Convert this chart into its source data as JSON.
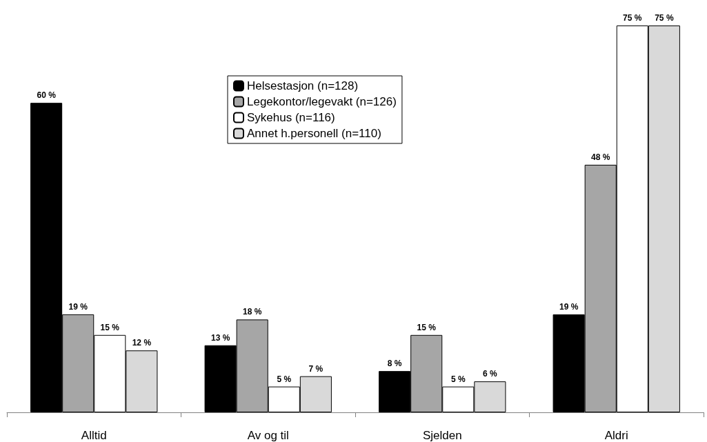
{
  "chart_data": {
    "type": "bar",
    "categories": [
      "Alltid",
      "Av og til",
      "Sjelden",
      "Aldri"
    ],
    "series": [
      {
        "name": "Helsestasjon (n=128)",
        "color": "#000000",
        "values": [
          60,
          13,
          8,
          19
        ],
        "value_labels": [
          "60 %",
          "13 %",
          "8 %",
          "19 %"
        ]
      },
      {
        "name": "Legekontor/legevakt (n=126)",
        "color": "#a6a6a6",
        "values": [
          19,
          18,
          15,
          48
        ],
        "value_labels": [
          "19 %",
          "18 %",
          "15 %",
          "48 %"
        ]
      },
      {
        "name": "Sykehus (n=116)",
        "color": "#ffffff",
        "values": [
          15,
          5,
          5,
          75
        ],
        "value_labels": [
          "15 %",
          "5 %",
          "5 %",
          "75 %"
        ]
      },
      {
        "name": "Annet h.personell (n=110)",
        "color": "#d9d9d9",
        "values": [
          12,
          7,
          6,
          75
        ],
        "value_labels": [
          "12 %",
          "7 %",
          "6 %",
          "75 %"
        ]
      }
    ],
    "legend": "top",
    "grid": false,
    "tick_labels": "x"
  }
}
